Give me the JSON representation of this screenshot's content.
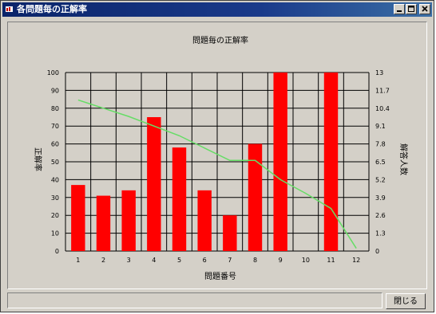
{
  "window": {
    "title": "各問題毎の正解率",
    "close_button_label": "閉じる"
  },
  "colors": {
    "bar": "#ff0000",
    "line": "#66dd66",
    "plot_background": "#d4d0c8",
    "grid": "#000000",
    "title_bar": "#0a246a"
  },
  "icons": [
    "app-icon",
    "minimize-icon",
    "maximize-icon",
    "close-icon"
  ],
  "chart_data": {
    "type": "bar",
    "title": "問題毎の正解率",
    "xlabel": "問題番号",
    "ylabel": "正解率",
    "y2label": "解答人数",
    "categories": [
      "1",
      "2",
      "3",
      "4",
      "5",
      "6",
      "7",
      "8",
      "9",
      "10",
      "11",
      "12"
    ],
    "series": [
      {
        "values": [
          37,
          31,
          34,
          75,
          58,
          34,
          20,
          60,
          100,
          0,
          100,
          0
        ]
      },
      {
        "axis": "right",
        "type": "line",
        "values": [
          11.0,
          10.4,
          9.8,
          9.1,
          8.4,
          7.5,
          6.6,
          6.6,
          5.2,
          4.2,
          3.1,
          0.2
        ]
      }
    ],
    "ylim": [
      0,
      100
    ],
    "y_ticks": [
      "0",
      "10",
      "20",
      "30",
      "40",
      "50",
      "60",
      "70",
      "80",
      "90",
      "100"
    ],
    "y2lim": [
      0,
      13
    ],
    "y2_ticks": [
      "0",
      "1.3",
      "2.6",
      "3.9",
      "5.2",
      "6.5",
      "7.8",
      "9.1",
      "10.4",
      "11.7",
      "13"
    ],
    "grid": true
  }
}
